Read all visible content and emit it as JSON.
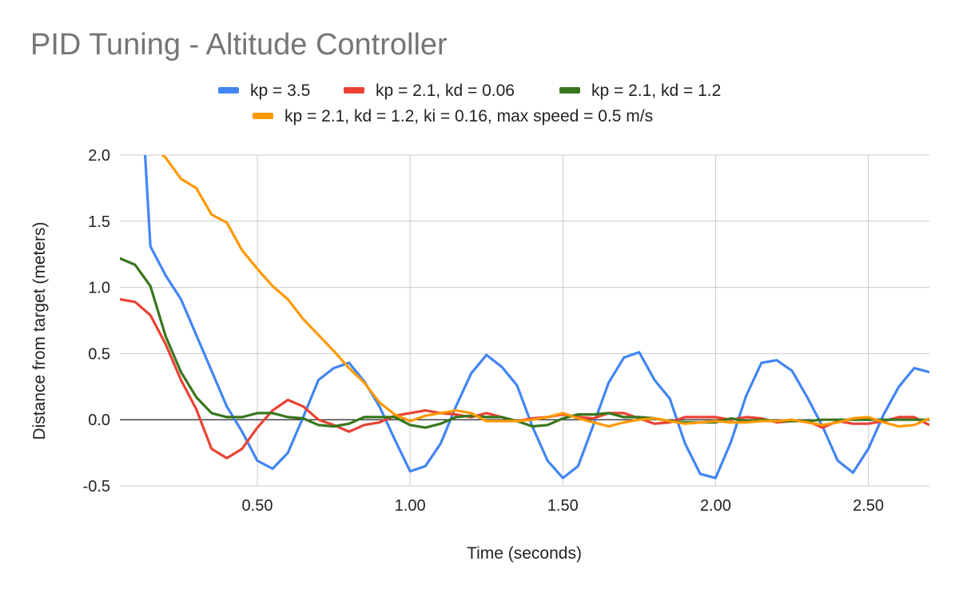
{
  "chart_data": {
    "type": "line",
    "title": "PID Tuning - Altitude Controller",
    "xlabel": "Time (seconds)",
    "ylabel": "Distance from target (meters)",
    "xlim": [
      0.05,
      2.7
    ],
    "ylim": [
      -0.5,
      2.0
    ],
    "x_ticks": [
      0.5,
      1.0,
      1.5,
      2.0,
      2.5
    ],
    "x_tick_labels": [
      "0.50",
      "1.00",
      "1.50",
      "2.00",
      "2.50"
    ],
    "y_ticks": [
      -0.5,
      0.0,
      0.5,
      1.0,
      1.5,
      2.0
    ],
    "y_tick_labels": [
      "-0.5",
      "0.0",
      "0.5",
      "1.0",
      "1.5",
      "2.0"
    ],
    "grid": true,
    "legend_position": "top",
    "series": [
      {
        "name": "kp = 3.5",
        "color": "#4285f4",
        "points": [
          [
            0.13,
            2.1
          ],
          [
            0.15,
            1.31
          ],
          [
            0.2,
            1.09
          ],
          [
            0.25,
            0.91
          ],
          [
            0.3,
            0.64
          ],
          [
            0.35,
            0.37
          ],
          [
            0.4,
            0.1
          ],
          [
            0.45,
            -0.09
          ],
          [
            0.5,
            -0.31
          ],
          [
            0.55,
            -0.37
          ],
          [
            0.6,
            -0.25
          ],
          [
            0.65,
            0.02
          ],
          [
            0.7,
            0.3
          ],
          [
            0.75,
            0.39
          ],
          [
            0.8,
            0.43
          ],
          [
            0.85,
            0.29
          ],
          [
            0.9,
            0.1
          ],
          [
            0.95,
            -0.15
          ],
          [
            1.0,
            -0.39
          ],
          [
            1.05,
            -0.35
          ],
          [
            1.1,
            -0.18
          ],
          [
            1.15,
            0.1
          ],
          [
            1.2,
            0.35
          ],
          [
            1.25,
            0.49
          ],
          [
            1.3,
            0.4
          ],
          [
            1.35,
            0.26
          ],
          [
            1.4,
            -0.05
          ],
          [
            1.45,
            -0.31
          ],
          [
            1.5,
            -0.44
          ],
          [
            1.55,
            -0.35
          ],
          [
            1.6,
            -0.04
          ],
          [
            1.65,
            0.28
          ],
          [
            1.7,
            0.47
          ],
          [
            1.75,
            0.51
          ],
          [
            1.8,
            0.3
          ],
          [
            1.85,
            0.16
          ],
          [
            1.9,
            -0.18
          ],
          [
            1.95,
            -0.41
          ],
          [
            2.0,
            -0.44
          ],
          [
            2.05,
            -0.17
          ],
          [
            2.1,
            0.18
          ],
          [
            2.15,
            0.43
          ],
          [
            2.2,
            0.45
          ],
          [
            2.25,
            0.37
          ],
          [
            2.3,
            0.17
          ],
          [
            2.35,
            -0.05
          ],
          [
            2.4,
            -0.31
          ],
          [
            2.45,
            -0.4
          ],
          [
            2.5,
            -0.22
          ],
          [
            2.55,
            0.04
          ],
          [
            2.6,
            0.25
          ],
          [
            2.65,
            0.39
          ],
          [
            2.7,
            0.36
          ]
        ]
      },
      {
        "name": "kp = 2.1, kd = 0.06",
        "color": "#ea4335",
        "points": [
          [
            0.05,
            0.91
          ],
          [
            0.1,
            0.89
          ],
          [
            0.15,
            0.79
          ],
          [
            0.2,
            0.57
          ],
          [
            0.25,
            0.3
          ],
          [
            0.3,
            0.08
          ],
          [
            0.35,
            -0.22
          ],
          [
            0.4,
            -0.29
          ],
          [
            0.45,
            -0.22
          ],
          [
            0.5,
            -0.06
          ],
          [
            0.55,
            0.07
          ],
          [
            0.6,
            0.15
          ],
          [
            0.65,
            0.1
          ],
          [
            0.7,
            0.0
          ],
          [
            0.75,
            -0.04
          ],
          [
            0.8,
            -0.09
          ],
          [
            0.85,
            -0.04
          ],
          [
            0.9,
            -0.02
          ],
          [
            0.95,
            0.03
          ],
          [
            1.0,
            0.05
          ],
          [
            1.05,
            0.07
          ],
          [
            1.1,
            0.05
          ],
          [
            1.15,
            0.04
          ],
          [
            1.2,
            0.02
          ],
          [
            1.25,
            0.05
          ],
          [
            1.3,
            0.02
          ],
          [
            1.35,
            -0.01
          ],
          [
            1.4,
            0.01
          ],
          [
            1.45,
            0.02
          ],
          [
            1.5,
            0.04
          ],
          [
            1.55,
            0.02
          ],
          [
            1.6,
            0.01
          ],
          [
            1.65,
            0.05
          ],
          [
            1.7,
            0.05
          ],
          [
            1.75,
            0.01
          ],
          [
            1.8,
            -0.03
          ],
          [
            1.85,
            -0.02
          ],
          [
            1.9,
            0.02
          ],
          [
            1.95,
            0.02
          ],
          [
            2.0,
            0.02
          ],
          [
            2.05,
            0.0
          ],
          [
            2.1,
            0.02
          ],
          [
            2.15,
            0.01
          ],
          [
            2.2,
            -0.02
          ],
          [
            2.25,
            -0.01
          ],
          [
            2.3,
            -0.01
          ],
          [
            2.35,
            -0.06
          ],
          [
            2.4,
            -0.01
          ],
          [
            2.45,
            -0.03
          ],
          [
            2.5,
            -0.03
          ],
          [
            2.55,
            -0.01
          ],
          [
            2.6,
            0.02
          ],
          [
            2.65,
            0.02
          ],
          [
            2.7,
            -0.04
          ]
        ]
      },
      {
        "name": "kp = 2.1, kd = 1.2",
        "color": "#38761d",
        "points": [
          [
            0.05,
            1.22
          ],
          [
            0.1,
            1.17
          ],
          [
            0.15,
            1.01
          ],
          [
            0.2,
            0.63
          ],
          [
            0.25,
            0.36
          ],
          [
            0.3,
            0.17
          ],
          [
            0.35,
            0.05
          ],
          [
            0.4,
            0.02
          ],
          [
            0.45,
            0.02
          ],
          [
            0.5,
            0.05
          ],
          [
            0.55,
            0.05
          ],
          [
            0.6,
            0.02
          ],
          [
            0.65,
            0.01
          ],
          [
            0.7,
            -0.04
          ],
          [
            0.75,
            -0.05
          ],
          [
            0.8,
            -0.03
          ],
          [
            0.85,
            0.02
          ],
          [
            0.9,
            0.02
          ],
          [
            0.95,
            0.02
          ],
          [
            1.0,
            -0.04
          ],
          [
            1.05,
            -0.06
          ],
          [
            1.1,
            -0.03
          ],
          [
            1.15,
            0.02
          ],
          [
            1.2,
            0.03
          ],
          [
            1.25,
            0.02
          ],
          [
            1.3,
            0.02
          ],
          [
            1.35,
            -0.01
          ],
          [
            1.4,
            -0.05
          ],
          [
            1.45,
            -0.04
          ],
          [
            1.5,
            0.01
          ],
          [
            1.55,
            0.04
          ],
          [
            1.6,
            0.04
          ],
          [
            1.65,
            0.05
          ],
          [
            1.7,
            0.02
          ],
          [
            1.75,
            0.02
          ],
          [
            1.8,
            0.01
          ],
          [
            1.85,
            -0.01
          ],
          [
            1.9,
            -0.02
          ],
          [
            1.95,
            -0.02
          ],
          [
            2.0,
            -0.02
          ],
          [
            2.05,
            0.01
          ],
          [
            2.1,
            -0.01
          ],
          [
            2.15,
            0.0
          ],
          [
            2.2,
            -0.01
          ],
          [
            2.25,
            -0.01
          ],
          [
            2.3,
            -0.01
          ],
          [
            2.35,
            0.0
          ],
          [
            2.4,
            0.0
          ],
          [
            2.45,
            0.0
          ],
          [
            2.5,
            0.0
          ],
          [
            2.55,
            0.0
          ],
          [
            2.6,
            0.0
          ],
          [
            2.65,
            0.0
          ],
          [
            2.7,
            0.0
          ]
        ]
      },
      {
        "name": "kp = 2.1, kd = 1.2, ki = 0.16, max speed = 0.5 m/s",
        "color": "#ff9900",
        "points": [
          [
            0.18,
            2.02
          ],
          [
            0.2,
            1.98
          ],
          [
            0.25,
            1.82
          ],
          [
            0.3,
            1.75
          ],
          [
            0.35,
            1.55
          ],
          [
            0.4,
            1.49
          ],
          [
            0.45,
            1.28
          ],
          [
            0.5,
            1.14
          ],
          [
            0.55,
            1.01
          ],
          [
            0.6,
            0.91
          ],
          [
            0.65,
            0.76
          ],
          [
            0.7,
            0.64
          ],
          [
            0.75,
            0.52
          ],
          [
            0.8,
            0.39
          ],
          [
            0.85,
            0.28
          ],
          [
            0.9,
            0.13
          ],
          [
            0.95,
            0.04
          ],
          [
            1.0,
            -0.01
          ],
          [
            1.05,
            0.03
          ],
          [
            1.1,
            0.05
          ],
          [
            1.15,
            0.07
          ],
          [
            1.2,
            0.05
          ],
          [
            1.25,
            -0.01
          ],
          [
            1.3,
            -0.01
          ],
          [
            1.35,
            -0.01
          ],
          [
            1.4,
            0.0
          ],
          [
            1.45,
            0.02
          ],
          [
            1.5,
            0.05
          ],
          [
            1.55,
            0.01
          ],
          [
            1.6,
            -0.02
          ],
          [
            1.65,
            -0.05
          ],
          [
            1.7,
            -0.02
          ],
          [
            1.75,
            0.0
          ],
          [
            1.8,
            0.01
          ],
          [
            1.85,
            -0.01
          ],
          [
            1.9,
            -0.03
          ],
          [
            1.95,
            -0.02
          ],
          [
            2.0,
            -0.01
          ],
          [
            2.05,
            -0.02
          ],
          [
            2.1,
            -0.02
          ],
          [
            2.15,
            -0.01
          ],
          [
            2.2,
            -0.01
          ],
          [
            2.25,
            0.0
          ],
          [
            2.3,
            -0.02
          ],
          [
            2.35,
            -0.04
          ],
          [
            2.4,
            -0.02
          ],
          [
            2.45,
            0.01
          ],
          [
            2.5,
            0.02
          ],
          [
            2.55,
            -0.02
          ],
          [
            2.6,
            -0.05
          ],
          [
            2.65,
            -0.04
          ],
          [
            2.7,
            0.01
          ]
        ]
      }
    ]
  }
}
